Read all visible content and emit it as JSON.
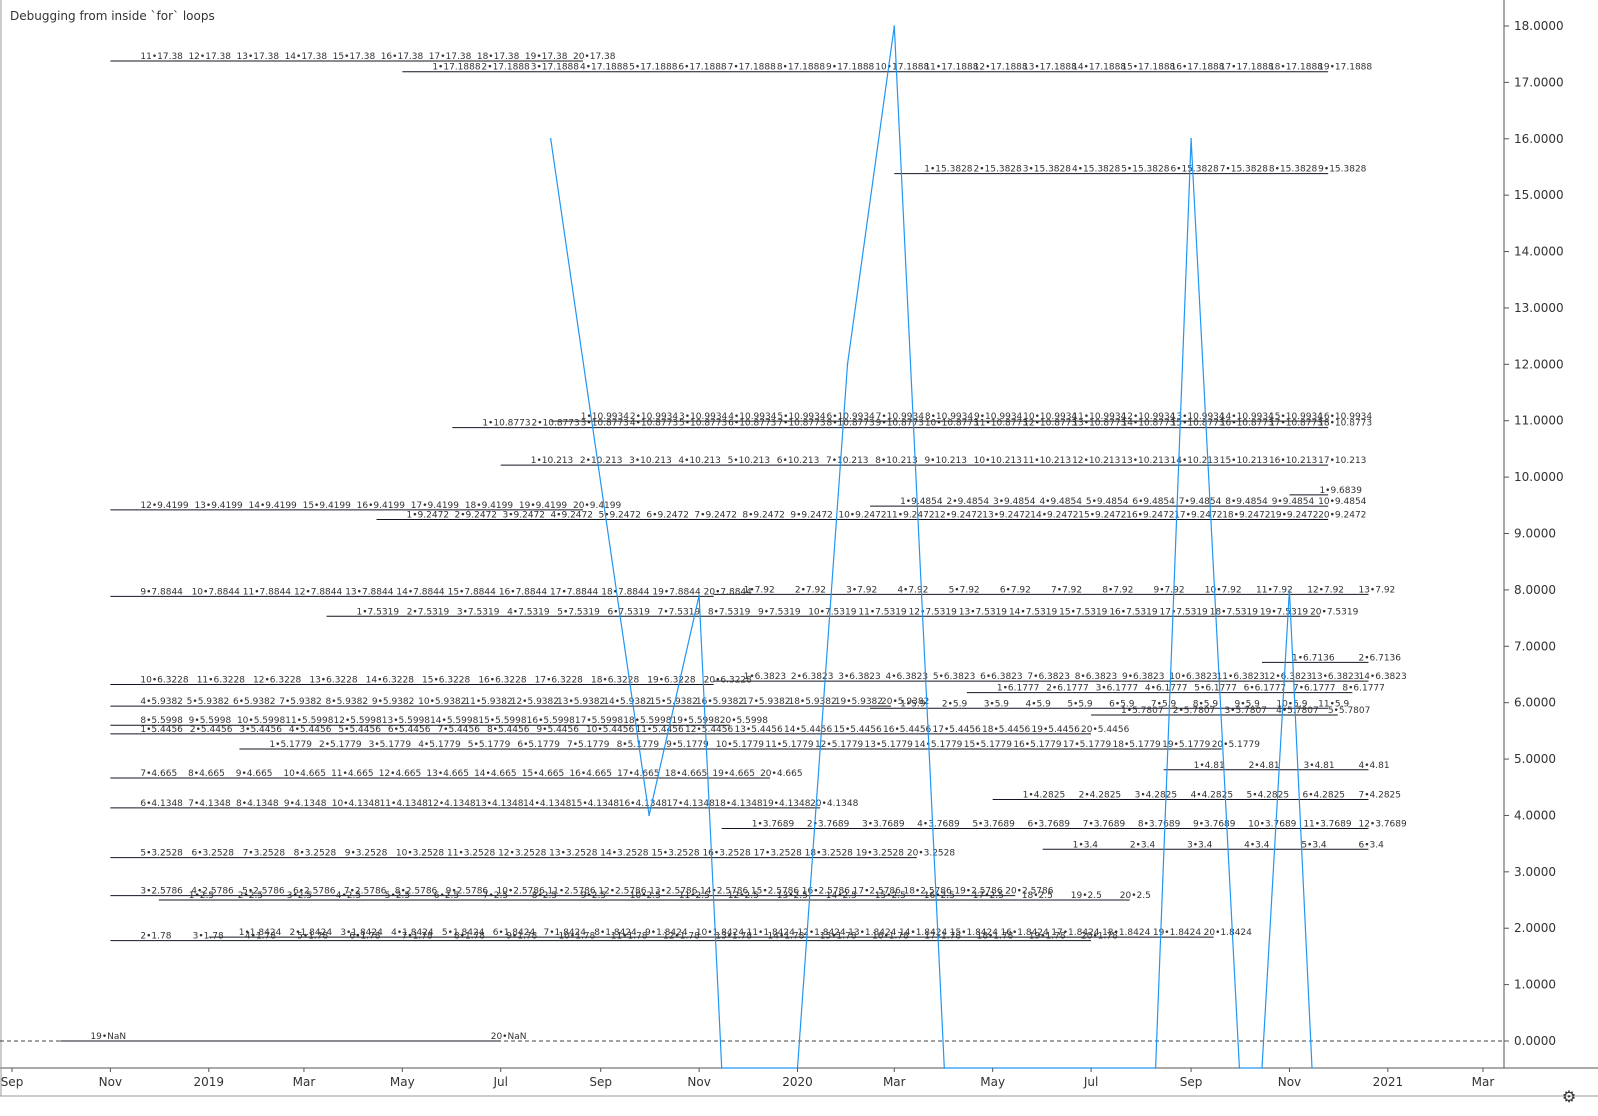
{
  "indicator_title": "Debugging from inside `for` loops",
  "settings_icon": "gear-icon",
  "colors": {
    "line": "#2196f3",
    "hline": "#131722",
    "text": "#333333",
    "axis": "#b2b5be"
  },
  "chart_data": {
    "type": "line",
    "title": "",
    "ylabel": "",
    "xlabel": "",
    "y_range": [
      0,
      18.3
    ],
    "x_range": [
      "2018-08-23",
      "2021-03-25"
    ],
    "y_ticks": [
      "0.0000",
      "1.0000",
      "2.0000",
      "3.0000",
      "4.0000",
      "5.0000",
      "6.0000",
      "7.0000",
      "8.0000",
      "9.0000",
      "10.0000",
      "11.0000",
      "12.0000",
      "13.0000",
      "14.0000",
      "15.0000",
      "16.0000",
      "17.0000",
      "18.0000"
    ],
    "x_ticks": [
      {
        "label": "Sep",
        "date": "2018-09-01"
      },
      {
        "label": "Nov",
        "date": "2018-11-01"
      },
      {
        "label": "2019",
        "date": "2019-01-01"
      },
      {
        "label": "Mar",
        "date": "2019-03-01"
      },
      {
        "label": "May",
        "date": "2019-05-01"
      },
      {
        "label": "Jul",
        "date": "2019-07-01"
      },
      {
        "label": "Sep",
        "date": "2019-09-01"
      },
      {
        "label": "Nov",
        "date": "2019-11-01"
      },
      {
        "label": "2020",
        "date": "2020-01-01"
      },
      {
        "label": "Mar",
        "date": "2020-03-01"
      },
      {
        "label": "May",
        "date": "2020-05-01"
      },
      {
        "label": "Jul",
        "date": "2020-07-01"
      },
      {
        "label": "Sep",
        "date": "2020-09-01"
      },
      {
        "label": "Nov",
        "date": "2020-11-01"
      },
      {
        "label": "2021",
        "date": "2021-01-01"
      },
      {
        "label": "Mar",
        "date": "2021-03-01"
      }
    ],
    "series": [
      {
        "points": [
          [
            "2019-08-01",
            16.0
          ],
          [
            "2019-10-01",
            4.0
          ],
          [
            "2019-11-01",
            7.9
          ],
          [
            "2019-11-15",
            -0.5
          ],
          [
            "2020-01-01",
            -0.5
          ],
          [
            "2020-02-01",
            12.0
          ],
          [
            "2020-03-01",
            18.0
          ],
          [
            "2020-04-01",
            -0.5
          ],
          [
            "2020-08-10",
            -0.5
          ],
          [
            "2020-09-01",
            16.0
          ],
          [
            "2020-10-01",
            -0.5
          ],
          [
            "2020-10-15",
            -0.5
          ],
          [
            "2020-11-01",
            8.0
          ],
          [
            "2020-11-15",
            -0.5
          ]
        ]
      }
    ],
    "zero_line": 0,
    "label_groups": [
      {
        "y": 17.38,
        "x0": "2018-11-01",
        "x1": "2019-08-21",
        "start": 11,
        "end": 20,
        "suffix": "•17.38"
      },
      {
        "y": 17.1888,
        "x0": "2019-05-01",
        "x1": "2020-11-25",
        "start": 1,
        "end": 19,
        "suffix": "•17.1888"
      },
      {
        "y": 15.3828,
        "x0": "2020-03-01",
        "x1": "2020-11-25",
        "start": 1,
        "end": 9,
        "suffix": "•15.3828"
      },
      {
        "y": 10.9934,
        "x0": "2019-08-01",
        "x1": "2020-11-25",
        "start": 1,
        "end": 16,
        "suffix": "•10.9934"
      },
      {
        "y": 10.8773,
        "x0": "2019-06-01",
        "x1": "2020-11-25",
        "start": 1,
        "end": 18,
        "suffix": "•10.8773"
      },
      {
        "y": 10.213,
        "x0": "2019-07-01",
        "x1": "2020-11-25",
        "start": 1,
        "end": 17,
        "suffix": "•10.213"
      },
      {
        "y": 9.6839,
        "x0": "2020-11-01",
        "x1": "2020-11-25",
        "start": 1,
        "end": 1,
        "suffix": "•9.6839"
      },
      {
        "y": 9.4854,
        "x0": "2020-02-15",
        "x1": "2020-11-25",
        "start": 1,
        "end": 10,
        "suffix": "•9.4854"
      },
      {
        "y": 9.4199,
        "x0": "2018-11-01",
        "x1": "2019-08-21",
        "start": 12,
        "end": 20,
        "suffix": "•9.4199"
      },
      {
        "y": 9.2472,
        "x0": "2019-04-15",
        "x1": "2020-11-25",
        "start": 1,
        "end": 20,
        "suffix": "•9.2472"
      },
      {
        "y": 7.92,
        "x0": "2019-11-10",
        "x1": "2020-12-20",
        "start": 1,
        "end": 13,
        "suffix": "•7.92"
      },
      {
        "y": 7.8844,
        "x0": "2018-11-01",
        "x1": "2019-11-10",
        "start": 9,
        "end": 20,
        "suffix": "•7.8844"
      },
      {
        "y": 7.5319,
        "x0": "2019-03-15",
        "x1": "2020-11-20",
        "start": 1,
        "end": 20,
        "suffix": "•7.5319"
      },
      {
        "y": 6.7136,
        "x0": "2020-10-15",
        "x1": "2020-12-20",
        "start": 1,
        "end": 2,
        "suffix": "•6.7136"
      },
      {
        "y": 6.3823,
        "x0": "2019-11-10",
        "x1": "2020-12-20",
        "start": 1,
        "end": 14,
        "suffix": "•6.3823"
      },
      {
        "y": 6.3228,
        "x0": "2018-11-01",
        "x1": "2019-11-10",
        "start": 10,
        "end": 20,
        "suffix": "•6.3228"
      },
      {
        "y": 6.1777,
        "x0": "2020-04-15",
        "x1": "2020-12-10",
        "start": 1,
        "end": 8,
        "suffix": "•6.1777"
      },
      {
        "y": 5.9382,
        "x0": "2018-11-01",
        "x1": "2020-02-28",
        "start": 4,
        "end": 20,
        "suffix": "•5.9382"
      },
      {
        "y": 5.9,
        "x0": "2020-02-15",
        "x1": "2020-11-25",
        "start": 1,
        "end": 11,
        "suffix": "•5.9"
      },
      {
        "y": 5.7807,
        "x0": "2020-07-01",
        "x1": "2020-12-01",
        "start": 1,
        "end": 5,
        "suffix": "•5.7807"
      },
      {
        "y": 5.5998,
        "x0": "2018-11-01",
        "x1": "2019-11-20",
        "start": 8,
        "end": 20,
        "suffix": "•5.5998"
      },
      {
        "y": 5.4456,
        "x0": "2018-11-01",
        "x1": "2020-07-01",
        "start": 1,
        "end": 20,
        "suffix": "•5.4456"
      },
      {
        "y": 5.1779,
        "x0": "2019-01-20",
        "x1": "2020-09-20",
        "start": 1,
        "end": 20,
        "suffix": "•5.1779"
      },
      {
        "y": 4.81,
        "x0": "2020-08-15",
        "x1": "2020-12-20",
        "start": 1,
        "end": 4,
        "suffix": "•4.81"
      },
      {
        "y": 4.665,
        "x0": "2018-11-01",
        "x1": "2019-12-15",
        "start": 7,
        "end": 20,
        "suffix": "•4.665"
      },
      {
        "y": 4.2825,
        "x0": "2020-05-01",
        "x1": "2020-12-20",
        "start": 1,
        "end": 7,
        "suffix": "•4.2825"
      },
      {
        "y": 4.1348,
        "x0": "2018-11-01",
        "x1": "2020-01-15",
        "start": 6,
        "end": 20,
        "suffix": "•4.1348"
      },
      {
        "y": 3.7689,
        "x0": "2019-11-15",
        "x1": "2020-12-20",
        "start": 1,
        "end": 12,
        "suffix": "•3.7689"
      },
      {
        "y": 3.4,
        "x0": "2020-06-01",
        "x1": "2020-12-20",
        "start": 1,
        "end": 6,
        "suffix": "•3.4"
      },
      {
        "y": 3.2528,
        "x0": "2018-11-01",
        "x1": "2020-03-15",
        "start": 5,
        "end": 20,
        "suffix": "•3.2528"
      },
      {
        "y": 2.5786,
        "x0": "2018-11-01",
        "x1": "2020-05-15",
        "start": 3,
        "end": 20,
        "suffix": "•2.5786"
      },
      {
        "y": 2.5,
        "x0": "2018-12-01",
        "x1": "2020-07-25",
        "start": 1,
        "end": 20,
        "suffix": "•2.5"
      },
      {
        "y": 1.8424,
        "x0": "2019-01-01",
        "x1": "2020-09-15",
        "start": 1,
        "end": 20,
        "suffix": "•1.8424"
      },
      {
        "y": 1.78,
        "x0": "2018-11-01",
        "x1": "2020-07-01",
        "start": 2,
        "end": 20,
        "suffix": "•1.78"
      },
      {
        "y": 0.0,
        "x0": "2018-10-01",
        "x1": "2019-07-01",
        "start": 19,
        "end": 20,
        "suffix": "•NaN"
      }
    ]
  }
}
